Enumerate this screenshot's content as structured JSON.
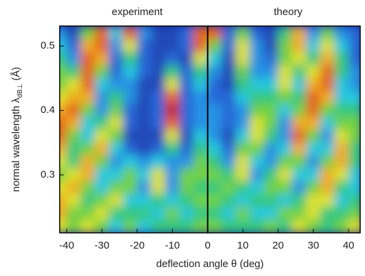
{
  "chart_data": {
    "type": "heatmap",
    "panel_labels": [
      "experiment",
      "theory"
    ],
    "xlabel": "deflection angle θ (deg)",
    "ylabel": "normal wavelength λ",
    "ylabel_subscript": "dB⊥",
    "ylabel_unit": "(Å)",
    "x": [
      -42,
      -38,
      -34,
      -30,
      -26,
      -22,
      -18,
      -14,
      -10,
      -6,
      -2,
      2,
      6,
      10,
      14,
      18,
      22,
      26,
      30,
      34,
      38,
      42
    ],
    "y": [
      0.52,
      0.5,
      0.48,
      0.46,
      0.44,
      0.42,
      0.4,
      0.38,
      0.36,
      0.34,
      0.32,
      0.3,
      0.28,
      0.26,
      0.24,
      0.22
    ],
    "z": [
      [
        0.3,
        0.1,
        0.6,
        0.9,
        0.4,
        0.9,
        0.3,
        0.1,
        0.1,
        0.2,
        0.9,
        0.9,
        0.2,
        0.6,
        0.2,
        0.1,
        0.5,
        0.8,
        0.3,
        0.6,
        0.3,
        0.2
      ],
      [
        0.4,
        0.2,
        0.8,
        0.9,
        0.3,
        0.7,
        0.2,
        0.1,
        0.1,
        0.2,
        0.9,
        0.6,
        0.2,
        0.7,
        0.3,
        0.1,
        0.6,
        0.8,
        0.4,
        0.7,
        0.4,
        0.2
      ],
      [
        0.5,
        0.3,
        0.9,
        0.8,
        0.2,
        0.5,
        0.2,
        0.1,
        0.2,
        0.1,
        0.7,
        0.4,
        0.1,
        0.7,
        0.3,
        0.2,
        0.6,
        0.7,
        0.5,
        0.8,
        0.5,
        0.2
      ],
      [
        0.6,
        0.5,
        0.9,
        0.6,
        0.2,
        0.4,
        0.2,
        0.1,
        0.5,
        0.2,
        0.5,
        0.3,
        0.1,
        0.6,
        0.3,
        0.3,
        0.7,
        0.5,
        0.7,
        0.9,
        0.5,
        0.3
      ],
      [
        0.6,
        0.7,
        0.9,
        0.4,
        0.3,
        0.3,
        0.1,
        0.1,
        0.7,
        0.2,
        0.4,
        0.2,
        0.1,
        0.5,
        0.4,
        0.4,
        0.7,
        0.4,
        0.8,
        0.9,
        0.4,
        0.3
      ],
      [
        0.7,
        0.8,
        0.8,
        0.3,
        0.5,
        0.3,
        0.1,
        0.2,
        0.9,
        0.2,
        0.3,
        0.2,
        0.2,
        0.4,
        0.5,
        0.5,
        0.6,
        0.5,
        0.9,
        0.8,
        0.4,
        0.4
      ],
      [
        0.8,
        0.9,
        0.6,
        0.3,
        0.6,
        0.2,
        0.1,
        0.2,
        1.0,
        0.2,
        0.3,
        0.3,
        0.2,
        0.3,
        0.6,
        0.6,
        0.4,
        0.6,
        0.9,
        0.6,
        0.5,
        0.5
      ],
      [
        0.9,
        0.8,
        0.4,
        0.5,
        0.7,
        0.2,
        0.1,
        0.2,
        0.9,
        0.2,
        0.3,
        0.3,
        0.2,
        0.3,
        0.7,
        0.6,
        0.3,
        0.8,
        0.8,
        0.4,
        0.6,
        0.6
      ],
      [
        0.9,
        0.6,
        0.4,
        0.7,
        0.6,
        0.1,
        0.1,
        0.1,
        0.7,
        0.1,
        0.4,
        0.3,
        0.1,
        0.4,
        0.7,
        0.5,
        0.3,
        0.9,
        0.6,
        0.3,
        0.7,
        0.6
      ],
      [
        0.8,
        0.5,
        0.6,
        0.8,
        0.4,
        0.2,
        0.1,
        0.2,
        0.5,
        0.2,
        0.5,
        0.4,
        0.2,
        0.6,
        0.6,
        0.3,
        0.4,
        0.8,
        0.4,
        0.4,
        0.8,
        0.5
      ],
      [
        0.7,
        0.5,
        0.8,
        0.6,
        0.3,
        0.4,
        0.3,
        0.4,
        0.3,
        0.3,
        0.6,
        0.5,
        0.3,
        0.7,
        0.4,
        0.3,
        0.6,
        0.6,
        0.3,
        0.6,
        0.8,
        0.5
      ],
      [
        0.6,
        0.7,
        0.8,
        0.4,
        0.4,
        0.6,
        0.4,
        0.7,
        0.3,
        0.6,
        0.6,
        0.6,
        0.5,
        0.7,
        0.3,
        0.5,
        0.7,
        0.4,
        0.4,
        0.8,
        0.7,
        0.4
      ],
      [
        0.7,
        0.8,
        0.6,
        0.4,
        0.6,
        0.6,
        0.3,
        0.7,
        0.3,
        0.6,
        0.5,
        0.5,
        0.6,
        0.5,
        0.4,
        0.6,
        0.6,
        0.3,
        0.6,
        0.8,
        0.5,
        0.4
      ],
      [
        0.8,
        0.7,
        0.5,
        0.6,
        0.7,
        0.4,
        0.4,
        0.5,
        0.4,
        0.5,
        0.6,
        0.6,
        0.5,
        0.4,
        0.5,
        0.5,
        0.4,
        0.5,
        0.7,
        0.7,
        0.4,
        0.5
      ],
      [
        0.8,
        0.6,
        0.6,
        0.7,
        0.5,
        0.5,
        0.5,
        0.4,
        0.6,
        0.4,
        0.5,
        0.5,
        0.4,
        0.6,
        0.4,
        0.4,
        0.6,
        0.6,
        0.7,
        0.5,
        0.5,
        0.6
      ],
      [
        0.7,
        0.6,
        0.7,
        0.6,
        0.4,
        0.6,
        0.4,
        0.5,
        0.5,
        0.5,
        0.6,
        0.6,
        0.5,
        0.5,
        0.5,
        0.6,
        0.5,
        0.7,
        0.6,
        0.5,
        0.6,
        0.7
      ]
    ],
    "divider_x": 0,
    "xlim": [
      -42,
      43.3
    ],
    "ylim": [
      0.21,
      0.531
    ],
    "xticks": [
      -40,
      -30,
      -20,
      -10,
      0,
      10,
      20,
      30,
      40
    ],
    "yticks": [
      0.3,
      0.4,
      0.5
    ]
  }
}
